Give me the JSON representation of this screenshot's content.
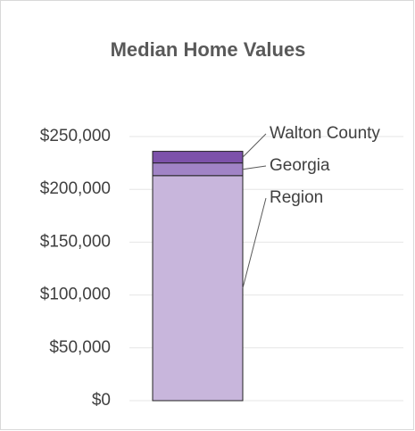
{
  "chart_data": {
    "type": "stacked_bar",
    "title": "Median Home Values",
    "categories": [
      null
    ],
    "series": [
      {
        "name": "Region",
        "color": "#c8b6dc",
        "values": [
          213000
        ]
      },
      {
        "name": "Georgia",
        "color": "#a184c6",
        "values": [
          12000
        ]
      },
      {
        "name": "Walton County",
        "color": "#7d52aa",
        "values": [
          11000
        ]
      }
    ],
    "ylim": [
      0,
      250000
    ],
    "yticks": [
      {
        "value": 0,
        "label": "$0"
      },
      {
        "value": 50000,
        "label": "$50,000"
      },
      {
        "value": 100000,
        "label": "$100,000"
      },
      {
        "value": 150000,
        "label": "$150,000"
      },
      {
        "value": 200000,
        "label": "$200,000"
      },
      {
        "value": 250000,
        "label": "$250,000"
      }
    ],
    "grid": true
  }
}
